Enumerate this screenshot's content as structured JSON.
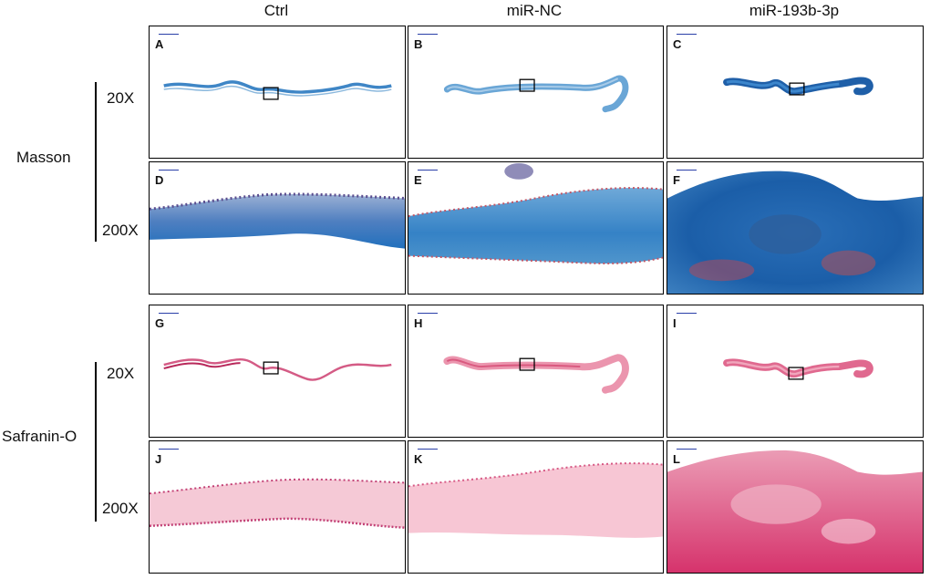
{
  "columns": [
    "Ctrl",
    "miR-NC",
    "miR-193b-3p"
  ],
  "rows": [
    {
      "stain": "Masson",
      "magnifications": [
        "20X",
        "200X"
      ]
    },
    {
      "stain": "Safranin-O",
      "magnifications": [
        "20X",
        "200X"
      ]
    }
  ],
  "panels": {
    "A": "A",
    "B": "B",
    "C": "C",
    "D": "D",
    "E": "E",
    "F": "F",
    "G": "G",
    "H": "H",
    "I": "I",
    "J": "J",
    "K": "K",
    "L": "L"
  },
  "colors": {
    "masson_blue": "#2f7fc4",
    "masson_dark": "#1b4f94",
    "masson_red": "#b5465a",
    "safranin_pink": "#e78aa6",
    "safranin_dark": "#c43a6e",
    "safranin_light": "#f4cbd8"
  }
}
